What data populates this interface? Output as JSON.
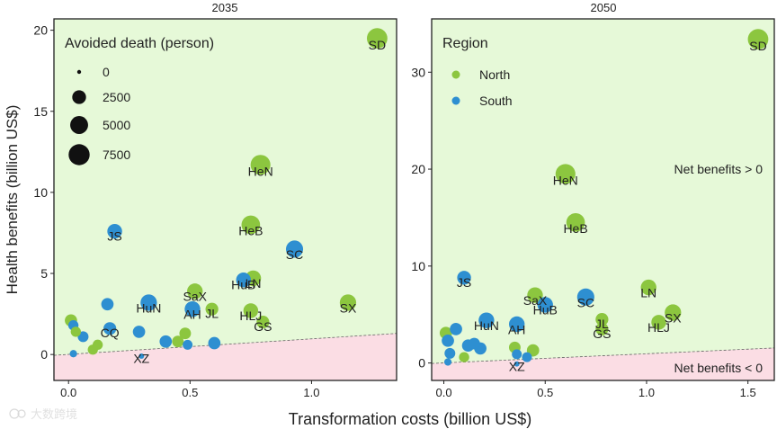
{
  "figure": {
    "xlabel": "Transformation costs (billion US$)",
    "ylabel": "Health benefits (billion US$)",
    "watermark": "大数跨境"
  },
  "colors": {
    "north": "#8cc63f",
    "south": "#2e8fd1",
    "positive_region": "#e6f9d8",
    "negative_region": "#fbdde4",
    "ink": "#222222"
  },
  "chart_data": [
    {
      "type": "scatter",
      "title": "2035",
      "xlim": [
        -0.06,
        1.35
      ],
      "ylim": [
        -1.6,
        20.7
      ],
      "xticks": [
        0.0,
        0.5,
        1.0
      ],
      "xtick_labels": [
        "0.0",
        "0.5",
        "1.0"
      ],
      "yticks": [
        0,
        5,
        10,
        15,
        20
      ],
      "ytick_labels": [
        "0",
        "5",
        "10",
        "15",
        "20"
      ],
      "break_even_line": {
        "x": [
          -0.06,
          1.35
        ],
        "y": [
          -0.05,
          1.3
        ]
      },
      "legend": {
        "title": "Avoided death (person)",
        "position": "top-left",
        "entries": [
          {
            "label": "0",
            "deaths": 0
          },
          {
            "label": "2500",
            "deaths": 2500
          },
          {
            "label": "5000",
            "deaths": 5000
          },
          {
            "label": "7500",
            "deaths": 7500
          }
        ]
      },
      "points": [
        {
          "label": "SD",
          "x": 1.27,
          "y": 19.5,
          "deaths": 7000,
          "region": "north"
        },
        {
          "label": "HeN",
          "x": 0.79,
          "y": 11.7,
          "deaths": 6500,
          "region": "north"
        },
        {
          "label": "HeB",
          "x": 0.75,
          "y": 8.0,
          "deaths": 5500,
          "region": "north"
        },
        {
          "label": "JS",
          "x": 0.19,
          "y": 7.6,
          "deaths": 3000,
          "region": "south"
        },
        {
          "label": "SC",
          "x": 0.93,
          "y": 6.5,
          "deaths": 4500,
          "region": "south"
        },
        {
          "label": "LN",
          "x": 0.76,
          "y": 4.7,
          "deaths": 3500,
          "region": "north"
        },
        {
          "label": "HuB",
          "x": 0.72,
          "y": 4.6,
          "deaths": 3000,
          "region": "south"
        },
        {
          "label": "SaX",
          "x": 0.52,
          "y": 3.9,
          "deaths": 3500,
          "region": "north"
        },
        {
          "label": "HuN",
          "x": 0.33,
          "y": 3.2,
          "deaths": 4000,
          "region": "south"
        },
        {
          "label": "AH",
          "x": 0.51,
          "y": 2.8,
          "deaths": 3500,
          "region": "south"
        },
        {
          "label": "JL",
          "x": 0.59,
          "y": 2.8,
          "deaths": 2000,
          "region": "north"
        },
        {
          "label": "HLJ",
          "x": 0.75,
          "y": 2.7,
          "deaths": 3000,
          "region": "north"
        },
        {
          "label": "GS",
          "x": 0.8,
          "y": 2.0,
          "deaths": 2000,
          "region": "north"
        },
        {
          "label": "SX",
          "x": 1.15,
          "y": 3.2,
          "deaths": 4000,
          "region": "north"
        },
        {
          "label": "CQ",
          "x": 0.17,
          "y": 1.6,
          "deaths": 2000,
          "region": "south"
        },
        {
          "label": "XZ",
          "x": 0.3,
          "y": -0.1,
          "deaths": 50,
          "region": "south"
        },
        {
          "label": "",
          "x": 0.01,
          "y": 2.1,
          "deaths": 1800,
          "region": "north"
        },
        {
          "label": "",
          "x": 0.02,
          "y": 1.8,
          "deaths": 1000,
          "region": "south"
        },
        {
          "label": "",
          "x": 0.03,
          "y": 1.4,
          "deaths": 1000,
          "region": "north"
        },
        {
          "label": "",
          "x": 0.06,
          "y": 1.1,
          "deaths": 1200,
          "region": "south"
        },
        {
          "label": "",
          "x": 0.1,
          "y": 0.3,
          "deaths": 1000,
          "region": "north"
        },
        {
          "label": "",
          "x": 0.12,
          "y": 0.6,
          "deaths": 1000,
          "region": "north"
        },
        {
          "label": "",
          "x": 0.02,
          "y": 0.05,
          "deaths": 300,
          "region": "south"
        },
        {
          "label": "",
          "x": 0.16,
          "y": 3.1,
          "deaths": 1800,
          "region": "south"
        },
        {
          "label": "",
          "x": 0.29,
          "y": 1.4,
          "deaths": 1800,
          "region": "south"
        },
        {
          "label": "",
          "x": 0.4,
          "y": 0.8,
          "deaths": 1800,
          "region": "south"
        },
        {
          "label": "",
          "x": 0.45,
          "y": 0.8,
          "deaths": 1500,
          "region": "north"
        },
        {
          "label": "",
          "x": 0.48,
          "y": 1.3,
          "deaths": 1500,
          "region": "north"
        },
        {
          "label": "",
          "x": 0.49,
          "y": 0.6,
          "deaths": 900,
          "region": "south"
        },
        {
          "label": "",
          "x": 0.6,
          "y": 0.7,
          "deaths": 1800,
          "region": "south"
        }
      ]
    },
    {
      "type": "scatter",
      "title": "2050",
      "xlim": [
        -0.06,
        1.63
      ],
      "ylim": [
        -1.8,
        35.5
      ],
      "xticks": [
        0.0,
        0.5,
        1.0,
        1.5
      ],
      "xtick_labels": [
        "0.0",
        "0.5",
        "1.0",
        "1.5"
      ],
      "yticks": [
        0,
        10,
        20,
        30
      ],
      "ytick_labels": [
        "0",
        "10",
        "20",
        "30"
      ],
      "break_even_line": {
        "x": [
          -0.06,
          1.63
        ],
        "y": [
          -0.05,
          1.55
        ]
      },
      "annotations": [
        "Net benefits > 0",
        "Net benefits < 0"
      ],
      "legend": {
        "title": "Region",
        "position": "top-left",
        "entries": [
          {
            "label": "North",
            "region": "north"
          },
          {
            "label": "South",
            "region": "south"
          }
        ]
      },
      "points": [
        {
          "label": "SD",
          "x": 1.55,
          "y": 33.4,
          "deaths": 7000,
          "region": "north"
        },
        {
          "label": "HeN",
          "x": 0.6,
          "y": 19.5,
          "deaths": 6500,
          "region": "north"
        },
        {
          "label": "HeB",
          "x": 0.65,
          "y": 14.5,
          "deaths": 5500,
          "region": "north"
        },
        {
          "label": "JS",
          "x": 0.1,
          "y": 8.8,
          "deaths": 2500,
          "region": "south"
        },
        {
          "label": "SaX",
          "x": 0.45,
          "y": 7.0,
          "deaths": 3500,
          "region": "north"
        },
        {
          "label": "LN",
          "x": 1.01,
          "y": 7.8,
          "deaths": 3500,
          "region": "north"
        },
        {
          "label": "SC",
          "x": 0.7,
          "y": 6.8,
          "deaths": 4500,
          "region": "south"
        },
        {
          "label": "HuB",
          "x": 0.5,
          "y": 6.0,
          "deaths": 3500,
          "region": "south"
        },
        {
          "label": "SX",
          "x": 1.13,
          "y": 5.2,
          "deaths": 4000,
          "region": "north"
        },
        {
          "label": "JL",
          "x": 0.78,
          "y": 4.5,
          "deaths": 2000,
          "region": "north"
        },
        {
          "label": "HLJ",
          "x": 1.06,
          "y": 4.2,
          "deaths": 3000,
          "region": "north"
        },
        {
          "label": "HuN",
          "x": 0.21,
          "y": 4.4,
          "deaths": 3500,
          "region": "south"
        },
        {
          "label": "AH",
          "x": 0.36,
          "y": 4.0,
          "deaths": 3500,
          "region": "south"
        },
        {
          "label": "GS",
          "x": 0.78,
          "y": 3.5,
          "deaths": 2000,
          "region": "north"
        },
        {
          "label": "XZ",
          "x": 0.36,
          "y": -0.1,
          "deaths": 50,
          "region": "south"
        },
        {
          "label": "",
          "x": 0.01,
          "y": 3.1,
          "deaths": 1800,
          "region": "north"
        },
        {
          "label": "",
          "x": 0.02,
          "y": 2.3,
          "deaths": 1800,
          "region": "south"
        },
        {
          "label": "",
          "x": 0.03,
          "y": 1.0,
          "deaths": 1200,
          "region": "south"
        },
        {
          "label": "",
          "x": 0.06,
          "y": 3.5,
          "deaths": 1800,
          "region": "south"
        },
        {
          "label": "",
          "x": 0.12,
          "y": 1.8,
          "deaths": 1800,
          "region": "south"
        },
        {
          "label": "",
          "x": 0.15,
          "y": 2.0,
          "deaths": 1500,
          "region": "south"
        },
        {
          "label": "",
          "x": 0.18,
          "y": 1.5,
          "deaths": 1800,
          "region": "south"
        },
        {
          "label": "",
          "x": 0.1,
          "y": 0.6,
          "deaths": 1000,
          "region": "north"
        },
        {
          "label": "",
          "x": 0.02,
          "y": 0.1,
          "deaths": 300,
          "region": "south"
        },
        {
          "label": "",
          "x": 0.35,
          "y": 1.6,
          "deaths": 1500,
          "region": "north"
        },
        {
          "label": "",
          "x": 0.36,
          "y": 0.9,
          "deaths": 900,
          "region": "south"
        },
        {
          "label": "",
          "x": 0.41,
          "y": 0.6,
          "deaths": 900,
          "region": "south"
        },
        {
          "label": "",
          "x": 0.44,
          "y": 1.3,
          "deaths": 1800,
          "region": "north"
        }
      ]
    }
  ]
}
